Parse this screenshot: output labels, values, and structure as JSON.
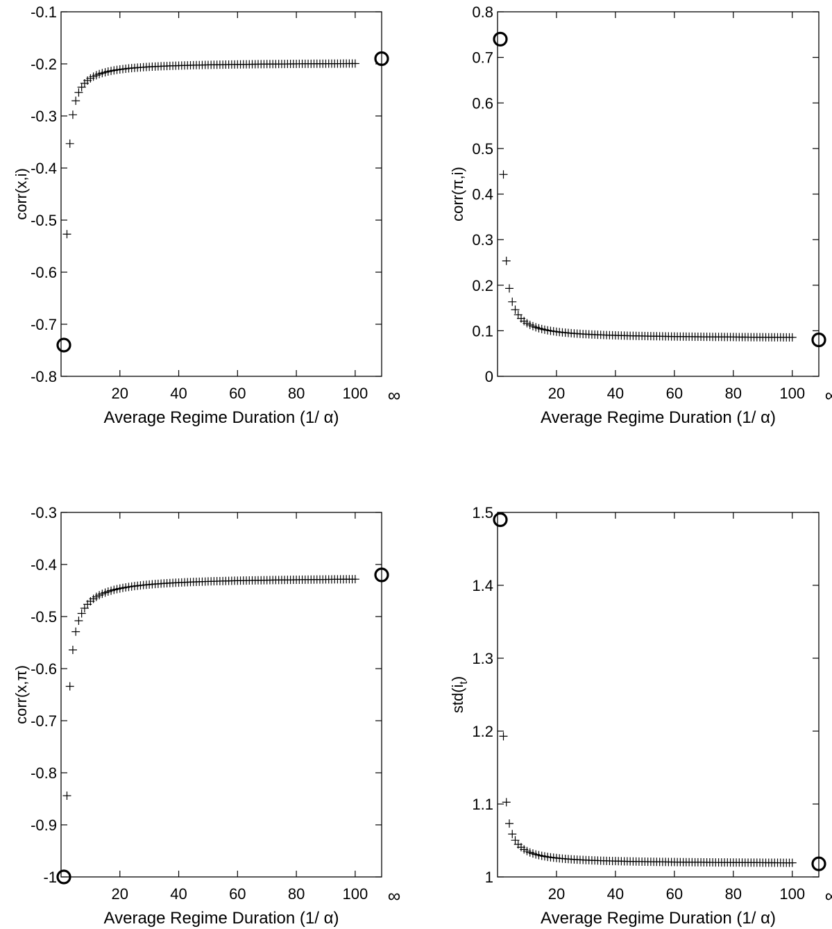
{
  "chart_data": [
    {
      "type": "scatter",
      "ylabel": "corr(x,i)",
      "xlabel": "Average Regime Duration (1/ α)",
      "xticks": [
        20,
        40,
        60,
        80,
        100
      ],
      "inf_label": "∞",
      "xlim": [
        0,
        109
      ],
      "ylim": [
        -0.8,
        -0.1
      ],
      "yticks": [
        "-0.1",
        "-0.2",
        "-0.3",
        "-0.4",
        "-0.5",
        "-0.6",
        "-0.7",
        "-0.8"
      ],
      "ytick_values": [
        -0.1,
        -0.2,
        -0.3,
        -0.4,
        -0.5,
        -0.6,
        -0.7,
        -0.8
      ],
      "grid": false,
      "curve": {
        "asymptote": -0.197,
        "coef": -0.33,
        "power": 1.08,
        "x_start": 2,
        "x_end": 100
      },
      "circles": [
        {
          "x": "1",
          "y": -0.74
        },
        {
          "x": "∞",
          "y": -0.19
        }
      ]
    },
    {
      "type": "scatter",
      "ylabel": "corr(π,i)",
      "xlabel": "Average Regime Duration (1/ α)",
      "xticks": [
        20,
        40,
        60,
        80,
        100
      ],
      "inf_label": "∞",
      "xlim": [
        0,
        109
      ],
      "ylim": [
        0,
        0.8
      ],
      "yticks": [
        "0.8",
        "0.7",
        "0.6",
        "0.5",
        "0.4",
        "0.3",
        "0.2",
        "0.1",
        "0"
      ],
      "ytick_values": [
        0.8,
        0.7,
        0.6,
        0.5,
        0.4,
        0.3,
        0.2,
        0.1,
        0
      ],
      "grid": false,
      "curve": {
        "asymptote": 0.083,
        "coef": 0.36,
        "power": 1.08,
        "x_start": 2,
        "x_end": 100
      },
      "circles": [
        {
          "x": "1",
          "y": 0.74
        },
        {
          "x": "∞",
          "y": 0.08
        }
      ]
    },
    {
      "type": "scatter",
      "ylabel": "corr(x,π)",
      "xlabel": "Average Regime Duration (1/ α)",
      "xticks": [
        20,
        40,
        60,
        80,
        100
      ],
      "inf_label": "∞",
      "xlim": [
        0,
        109
      ],
      "ylim": [
        -1,
        -0.3
      ],
      "yticks": [
        "-0.3",
        "-0.4",
        "-0.5",
        "-0.6",
        "-0.7",
        "-0.8",
        "-0.9",
        "-1"
      ],
      "ytick_values": [
        -0.3,
        -0.4,
        -0.5,
        -0.6,
        -0.7,
        -0.8,
        -0.9,
        -1.0
      ],
      "grid": false,
      "curve": {
        "asymptote": -0.424,
        "coef": -0.42,
        "power": 1.0,
        "x_start": 2,
        "x_end": 100
      },
      "circles": [
        {
          "x": "1",
          "y": -1.0
        },
        {
          "x": "∞",
          "y": -0.42
        }
      ]
    },
    {
      "type": "scatter",
      "ylabel": "std(i",
      "ylabel_sub": "t",
      "ylabel_close": ")",
      "xlabel": "Average Regime Duration (1/ α)",
      "xticks": [
        20,
        40,
        60,
        80,
        100
      ],
      "inf_label": "∞",
      "xlim": [
        0,
        109
      ],
      "ylim": [
        1,
        1.5
      ],
      "yticks": [
        "1.5",
        "1.4",
        "1.3",
        "1.2",
        "1.1",
        "1"
      ],
      "ytick_values": [
        1.5,
        1.4,
        1.3,
        1.2,
        1.1,
        1.0
      ],
      "grid": false,
      "curve": {
        "asymptote": 1.018,
        "coef": 0.175,
        "power": 1.05,
        "x_start": 2,
        "x_end": 100
      },
      "circles": [
        {
          "x": "1",
          "y": 1.49
        },
        {
          "x": "∞",
          "y": 1.018
        }
      ]
    }
  ]
}
